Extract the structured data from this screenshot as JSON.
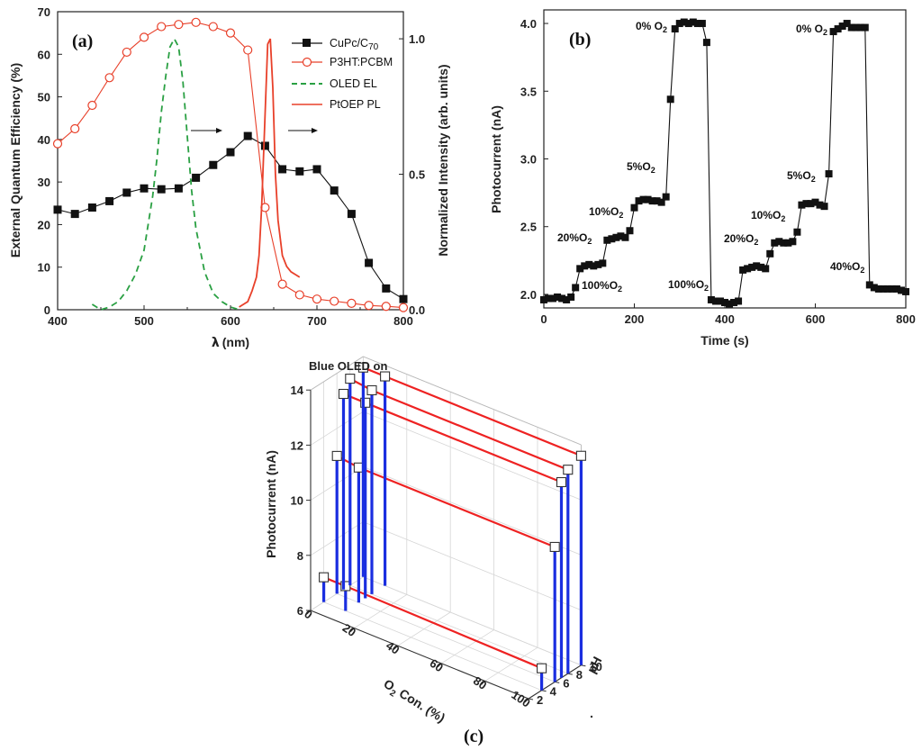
{
  "chart_data": [
    {
      "panel": "(a)",
      "type": "line",
      "xlabel": "λ (nm)",
      "ylabel": "External Quantum Efficiency (%)",
      "ylabel_right": "Normalized Intensity (arb. units)",
      "xlim": [
        400,
        800
      ],
      "ylim": [
        0,
        70
      ],
      "ylim_right": [
        0,
        1.1
      ],
      "xticks": [
        "400",
        "500",
        "600",
        "700",
        "800"
      ],
      "yticks": [
        "0",
        "10",
        "20",
        "30",
        "40",
        "50",
        "60",
        "70"
      ],
      "yticks_right": [
        "0.0",
        "0.5",
        "1.0"
      ],
      "legend": [
        "CuPc/C70",
        "P3HT:PCBM",
        "OLED EL",
        "PtOEP PL"
      ],
      "series": [
        {
          "name": "CuPc/C70",
          "axis": "left",
          "color": "#111111",
          "marker": "square",
          "x": [
            400,
            420,
            440,
            460,
            480,
            500,
            520,
            540,
            560,
            580,
            600,
            620,
            640,
            660,
            680,
            700,
            720,
            740,
            760,
            780,
            800
          ],
          "y": [
            23.5,
            22.5,
            24,
            25.5,
            27.5,
            28.5,
            28.3,
            28.5,
            31,
            34,
            37,
            40.8,
            38.5,
            33,
            32.5,
            33,
            28,
            22.5,
            11,
            5,
            2.5
          ]
        },
        {
          "name": "P3HT:PCBM",
          "axis": "left",
          "color": "#e8402a",
          "marker": "circle",
          "x": [
            400,
            420,
            440,
            460,
            480,
            500,
            520,
            540,
            560,
            580,
            600,
            620,
            640,
            660,
            680,
            700,
            720,
            740,
            760,
            780,
            800
          ],
          "y": [
            39,
            42.5,
            48,
            54.5,
            60.5,
            64,
            66.5,
            67,
            67.5,
            66.5,
            65,
            61,
            24,
            6,
            3.5,
            2.5,
            2,
            1.5,
            1,
            0.8,
            0.5
          ]
        },
        {
          "name": "OLED EL",
          "axis": "right",
          "color": "#2aa043",
          "dash": "7,5",
          "x": [
            440,
            445,
            450,
            455,
            460,
            470,
            480,
            490,
            500,
            510,
            515,
            520,
            525,
            530,
            535,
            540,
            545,
            550,
            555,
            560,
            570,
            580,
            590,
            600,
            610
          ],
          "y": [
            0.02,
            0.01,
            0,
            0.005,
            0.01,
            0.03,
            0.07,
            0.13,
            0.22,
            0.42,
            0.56,
            0.73,
            0.86,
            0.97,
            1.0,
            0.97,
            0.84,
            0.64,
            0.44,
            0.3,
            0.14,
            0.06,
            0.03,
            0.01,
            0
          ]
        },
        {
          "name": "PtOEP PL",
          "axis": "right",
          "color": "#e8402a",
          "x": [
            610,
            620,
            625,
            630,
            633,
            636,
            640,
            643,
            646,
            649,
            652,
            655,
            660,
            665,
            670,
            675,
            680
          ],
          "y": [
            0.01,
            0.03,
            0.07,
            0.12,
            0.2,
            0.38,
            0.72,
            0.98,
            1.0,
            0.82,
            0.5,
            0.33,
            0.2,
            0.16,
            0.14,
            0.13,
            0.12
          ]
        }
      ]
    },
    {
      "panel": "(b)",
      "type": "line",
      "xlabel": "Time (s)",
      "ylabel": "Photocurrent (nA)",
      "xlim": [
        0,
        800
      ],
      "ylim": [
        1.9,
        4.1
      ],
      "xticks": [
        "0",
        "200",
        "400",
        "600",
        "800"
      ],
      "yticks": [
        "2.0",
        "2.5",
        "3.0",
        "3.5",
        "4.0"
      ],
      "series": [
        {
          "name": "Photocurrent",
          "color": "#111111",
          "marker": "square",
          "x": [
            0,
            10,
            20,
            30,
            40,
            50,
            60,
            70,
            80,
            90,
            100,
            110,
            120,
            130,
            140,
            150,
            160,
            170,
            180,
            190,
            200,
            210,
            220,
            230,
            240,
            250,
            260,
            270,
            280,
            290,
            300,
            310,
            320,
            330,
            340,
            350,
            360,
            370,
            380,
            390,
            400,
            410,
            420,
            430,
            440,
            450,
            460,
            470,
            480,
            490,
            500,
            510,
            520,
            530,
            540,
            550,
            560,
            570,
            580,
            590,
            600,
            610,
            620,
            630,
            640,
            650,
            660,
            670,
            680,
            690,
            700,
            710,
            720,
            730,
            740,
            750,
            760,
            770,
            780,
            790,
            800
          ],
          "y": [
            1.96,
            1.97,
            1.97,
            1.98,
            1.97,
            1.96,
            1.98,
            2.05,
            2.19,
            2.21,
            2.22,
            2.21,
            2.22,
            2.23,
            2.4,
            2.41,
            2.42,
            2.43,
            2.42,
            2.47,
            2.64,
            2.69,
            2.7,
            2.7,
            2.69,
            2.69,
            2.68,
            2.72,
            3.44,
            3.96,
            4.0,
            4.01,
            4.0,
            4.01,
            4.0,
            4.0,
            3.86,
            1.96,
            1.95,
            1.95,
            1.94,
            1.93,
            1.94,
            1.95,
            2.18,
            2.19,
            2.2,
            2.21,
            2.2,
            2.19,
            2.3,
            2.38,
            2.39,
            2.38,
            2.38,
            2.39,
            2.46,
            2.66,
            2.67,
            2.67,
            2.68,
            2.66,
            2.65,
            2.89,
            3.94,
            3.96,
            3.98,
            4.0,
            3.97,
            3.97,
            3.97,
            3.97,
            2.07,
            2.05,
            2.04,
            2.04,
            2.04,
            2.04,
            2.04,
            2.03,
            2.02
          ]
        }
      ],
      "annotations": [
        {
          "text": "0% O2",
          "x": 290,
          "y": 3.98
        },
        {
          "text": "5%O2",
          "x": 250,
          "y": 2.76
        },
        {
          "text": "10%O2",
          "x": 180,
          "y": 2.58
        },
        {
          "text": "20%O2",
          "x": 70,
          "y": 2.35
        },
        {
          "text": "100%O2",
          "x": 160,
          "y": 2.05
        },
        {
          "text": "100%O2",
          "x": 355,
          "y": 2.05
        },
        {
          "text": "0% O2",
          "x": 660,
          "y": 3.98
        },
        {
          "text": "5%O2",
          "x": 625,
          "y": 2.76
        },
        {
          "text": "10%O2",
          "x": 535,
          "y": 2.58
        },
        {
          "text": "20%O2",
          "x": 440,
          "y": 2.35
        },
        {
          "text": "40%O2",
          "x": 745,
          "y": 2.17
        }
      ]
    },
    {
      "panel": "(c)",
      "type": "scatter",
      "title": "Blue OLED on",
      "xlabel": "O2 Con. (%)",
      "ylabel": "pH",
      "zlabel": "Photocurrent (nA)",
      "xlim": [
        0,
        100
      ],
      "ylim": [
        2,
        10
      ],
      "zlim": [
        6,
        14
      ],
      "xticks": [
        "0",
        "20",
        "40",
        "60",
        "80",
        "100"
      ],
      "yticks": [
        "2",
        "4",
        "6",
        "8",
        "10"
      ],
      "zticks": [
        "6",
        "8",
        "10",
        "12",
        "14"
      ],
      "series": [
        {
          "pH": 4,
          "o2": [
            0,
            10,
            100
          ],
          "current": [
            6.9,
            6.9,
            6.8
          ]
        },
        {
          "pH": 6,
          "o2": [
            0,
            10,
            100
          ],
          "current": [
            11.0,
            10.9,
            10.9
          ]
        },
        {
          "pH": 7,
          "o2": [
            0,
            10,
            100
          ],
          "current": [
            13.1,
            13.1,
            13.1
          ]
        },
        {
          "pH": 8,
          "o2": [
            0,
            10,
            100
          ],
          "current": [
            13.5,
            13.4,
            13.4
          ]
        },
        {
          "pH": 10,
          "o2": [
            0,
            10,
            100
          ],
          "current": [
            13.6,
            13.6,
            13.6
          ]
        }
      ]
    }
  ],
  "labels": {
    "panel_a": "(a)",
    "panel_b": "(b)",
    "panel_c": "(c)",
    "b_o2_0": "0% O",
    "b_o2_5": "5%O",
    "b_o2_10": "10%O",
    "b_o2_20": "20%O",
    "b_o2_100": "100%O",
    "b_o2_40": "40%O",
    "sub_2": "2",
    "c_title": "Blue OLED on",
    "c_o2_label": "O",
    "c_o2_label_rest": " Con. (%)",
    "c_ph_label": "pH",
    "legend_cupc": "CuPc/C",
    "legend_cupc_sub": "70",
    "legend_p3ht": "P3HT:PCBM",
    "legend_oled": "OLED EL",
    "legend_ptoep": "PtOEP PL",
    "a_xlabel_lambda": "λ",
    "a_xlabel_unit": "(nm)"
  },
  "colors": {
    "black": "#111111",
    "red": "#e8402a",
    "green": "#2aa043",
    "blue": "#1a2ee0",
    "red3d": "#ee2222"
  }
}
